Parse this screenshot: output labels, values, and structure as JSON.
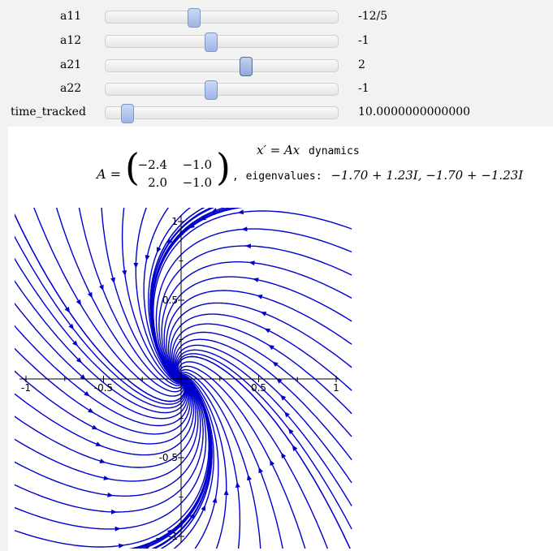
{
  "controls": [
    {
      "label": "a11",
      "value": "-12/5",
      "fraction": 0.38
    },
    {
      "label": "a12",
      "value": "-1",
      "fraction": 0.455
    },
    {
      "label": "a21",
      "value": "2",
      "fraction": 0.605
    },
    {
      "label": "a22",
      "value": "-1",
      "fraction": 0.455
    },
    {
      "label": "time_tracked",
      "value": "10.0000000000000",
      "fraction": 0.095
    }
  ],
  "output": {
    "eq_lhs": "x′ = Ax",
    "eq_word": "dynamics",
    "matrix_label": "A =",
    "matrix": [
      [
        "−2.4",
        "−1.0"
      ],
      [
        "2.0",
        "−1.0"
      ]
    ],
    "comma": ",",
    "eig_word": "eigenvalues:",
    "eig_values": "−1.70 + 1.23I, −1.70 + −1.23I"
  },
  "chart_data": {
    "type": "line",
    "title": "",
    "xlabel": "",
    "ylabel": "",
    "xlim": [
      -1,
      1
    ],
    "ylim": [
      -1,
      1
    ],
    "x_ticks": [
      "-1",
      "-0.5",
      "0.5",
      "1"
    ],
    "y_ticks": [
      "1",
      "0.5",
      "-0.5",
      "-1"
    ],
    "grid": false,
    "line_color": "#0000cc",
    "system": {
      "a11": -2.4,
      "a12": -1.0,
      "a21": 2.0,
      "a22": -1.0
    },
    "eigenvalues": [
      "-1.70+1.23I",
      "-1.70-1.23I"
    ]
  }
}
